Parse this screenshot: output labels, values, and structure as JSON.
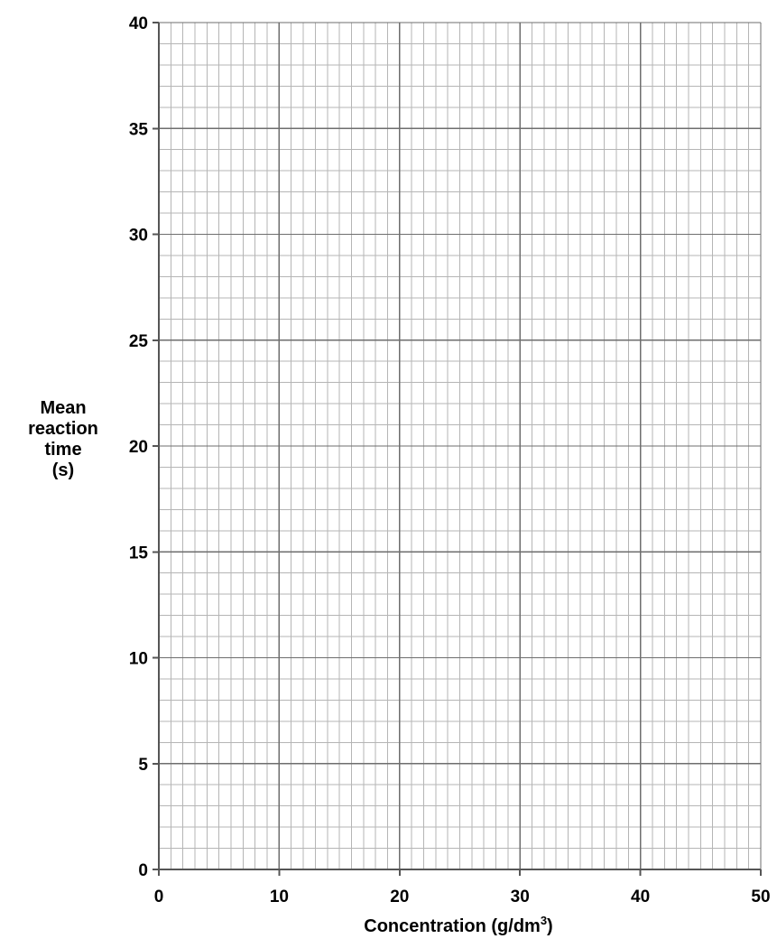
{
  "chart_data": {
    "type": "line",
    "title": "",
    "xlabel": "Concentration (g/dm",
    "xlabel_superscript": "3",
    "xlabel_suffix": ")",
    "ylabel_lines": [
      "Mean",
      "reaction",
      "time",
      "(s)"
    ],
    "xlim": [
      0,
      50
    ],
    "ylim": [
      0,
      40
    ],
    "x_ticks": [
      0,
      10,
      20,
      30,
      40,
      50
    ],
    "y_ticks": [
      0,
      5,
      10,
      15,
      20,
      25,
      30,
      35,
      40
    ],
    "x_minor_step": 1,
    "y_minor_step": 1,
    "x_major_step": 10,
    "y_major_step": 5,
    "grid": true,
    "series": [],
    "colors": {
      "minor_grid": "#b5b5b5",
      "major_grid": "#6e6e6e",
      "axis": "#555555",
      "text": "#000000"
    }
  }
}
